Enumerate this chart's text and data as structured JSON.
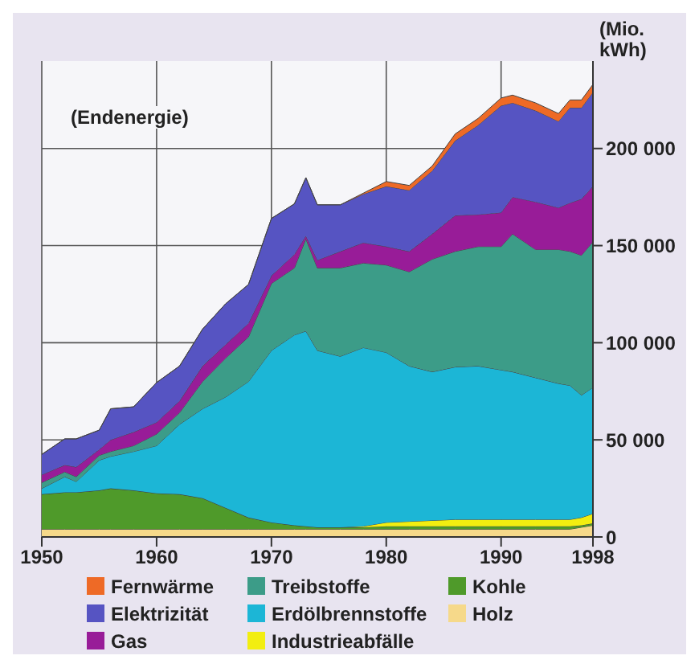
{
  "chart_data": {
    "type": "area",
    "stacked": true,
    "ylabel": "(Mio. kWh)",
    "annotations": [
      "(Endenergie)"
    ],
    "x": [
      1950,
      1952,
      1953,
      1955,
      1956,
      1958,
      1960,
      1962,
      1964,
      1966,
      1968,
      1970,
      1972,
      1973,
      1974,
      1976,
      1978,
      1980,
      1982,
      1984,
      1986,
      1988,
      1990,
      1991,
      1993,
      1995,
      1996,
      1997,
      1998
    ],
    "series": [
      {
        "name": "Holz",
        "color": "#f6d98a",
        "values": [
          4000,
          4000,
          4000,
          4000,
          4000,
          4000,
          4000,
          4000,
          4000,
          4000,
          4000,
          4000,
          4000,
          4000,
          4000,
          4000,
          4000,
          4000,
          4000,
          4000,
          4000,
          4000,
          4000,
          4000,
          4000,
          4000,
          4000,
          5000,
          6000
        ]
      },
      {
        "name": "Kohle",
        "color": "#4f9a2a",
        "values": [
          18000,
          19000,
          19000,
          20000,
          21000,
          20000,
          18500,
          18000,
          16000,
          11000,
          6000,
          3500,
          2000,
          1500,
          1000,
          1000,
          1000,
          1500,
          1500,
          1500,
          1500,
          1500,
          1500,
          1500,
          1500,
          1500,
          1500,
          1000,
          1000
        ]
      },
      {
        "name": "Industrieabfälle",
        "color": "#f2ee10",
        "values": [
          0,
          0,
          0,
          0,
          0,
          0,
          0,
          0,
          0,
          0,
          0,
          0,
          0,
          0,
          0,
          0,
          500,
          2000,
          2500,
          3000,
          3500,
          3500,
          3500,
          3500,
          3500,
          3500,
          3500,
          4000,
          5000
        ]
      },
      {
        "name": "Erdölbrennstoffe",
        "color": "#1cb6d6",
        "values": [
          3000,
          8000,
          5500,
          15500,
          16500,
          20000,
          24500,
          36000,
          46000,
          57000,
          70000,
          88500,
          98000,
          100500,
          91000,
          88000,
          92000,
          87500,
          80000,
          76500,
          78500,
          79000,
          77000,
          76000,
          73000,
          70000,
          69000,
          63000,
          65000
        ]
      },
      {
        "name": "Treibstoffe",
        "color": "#3c9c88",
        "values": [
          3000,
          2500,
          2500,
          2500,
          2500,
          3000,
          6000,
          6000,
          14000,
          20000,
          23000,
          34500,
          34500,
          47500,
          42500,
          45500,
          43500,
          45000,
          48500,
          58000,
          59500,
          61500,
          63500,
          71000,
          66000,
          69000,
          69000,
          72000,
          75000
        ]
      },
      {
        "name": "Gas",
        "color": "#981c98",
        "values": [
          4000,
          3500,
          5000,
          3000,
          6000,
          7000,
          6000,
          6000,
          8000,
          7000,
          7000,
          4000,
          7000,
          1500,
          4000,
          8500,
          10500,
          9500,
          10500,
          13000,
          18500,
          16500,
          17500,
          19000,
          24500,
          21500,
          25000,
          29000,
          28500
        ]
      },
      {
        "name": "Elektrizität",
        "color": "#5654c2",
        "values": [
          10500,
          13500,
          14500,
          10000,
          16000,
          13000,
          20500,
          18000,
          19000,
          21000,
          20000,
          29500,
          26000,
          30000,
          28500,
          24000,
          25000,
          31000,
          31500,
          32500,
          38500,
          46000,
          55000,
          48500,
          47000,
          44500,
          49000,
          47000,
          48500
        ]
      },
      {
        "name": "Fernwärme",
        "color": "#ee6a26",
        "values": [
          0,
          0,
          0,
          0,
          0,
          0,
          0,
          0,
          0,
          0,
          0,
          0,
          0,
          0,
          0,
          0,
          500,
          2500,
          2500,
          2500,
          3500,
          3500,
          4000,
          4000,
          4000,
          4000,
          4000,
          4000,
          4000
        ]
      }
    ],
    "xlim": [
      1950,
      1998
    ],
    "xticks": [
      1950,
      1960,
      1970,
      1980,
      1990,
      1998
    ],
    "ylim": [
      0,
      245000
    ],
    "yticks": [
      0,
      {
        "value": 50000,
        "label": "50 000"
      },
      {
        "value": 100000,
        "label": "100 000"
      },
      {
        "value": 150000,
        "label": "150 000"
      },
      {
        "value": 200000,
        "label": "200 000"
      }
    ],
    "grid": true,
    "legend": "bottom"
  }
}
